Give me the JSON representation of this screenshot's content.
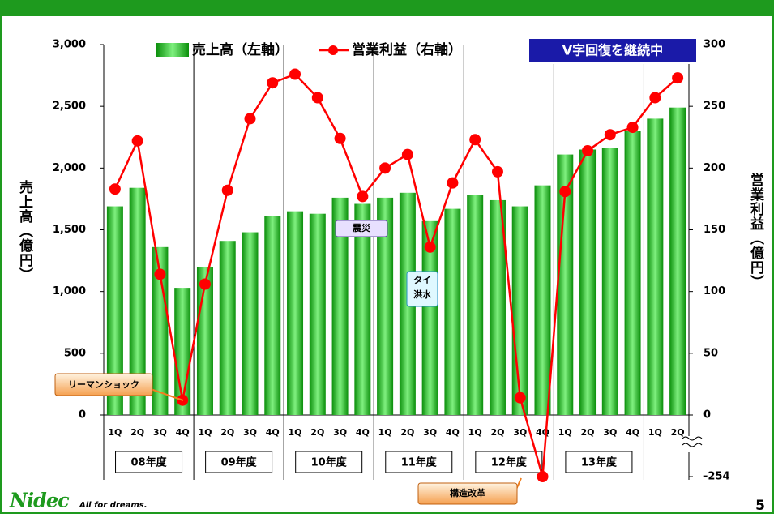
{
  "chart_data": {
    "type": "bar_line",
    "categories": [
      "1Q",
      "2Q",
      "3Q",
      "4Q",
      "1Q",
      "2Q",
      "3Q",
      "4Q",
      "1Q",
      "2Q",
      "3Q",
      "4Q",
      "1Q",
      "2Q",
      "3Q",
      "4Q",
      "1Q",
      "2Q",
      "3Q",
      "4Q",
      "1Q",
      "2Q",
      "3Q",
      "4Q",
      "1Q",
      "2Q"
    ],
    "groups": [
      "08年度",
      "09年度",
      "10年度",
      "11年度",
      "12年度",
      "13年度"
    ],
    "series": [
      {
        "name": "売上高（左軸）",
        "color": "#22bb22",
        "kind": "bar",
        "values": [
          1690,
          1840,
          1360,
          1030,
          1200,
          1410,
          1480,
          1610,
          1650,
          1630,
          1760,
          1710,
          1760,
          1800,
          1570,
          1670,
          1780,
          1740,
          1690,
          1860,
          2110,
          2150,
          2160,
          2300,
          2400,
          2490
        ]
      },
      {
        "name": "営業利益（右軸）",
        "color": "#ff0000",
        "kind": "line",
        "axis": "y2",
        "values": [
          183,
          222,
          114,
          12,
          106,
          182,
          240,
          269,
          276,
          257,
          224,
          177,
          200,
          211,
          136,
          188,
          223,
          197,
          14,
          -254,
          181,
          214,
          227,
          233,
          257,
          273
        ]
      }
    ],
    "ylabel": "売上高（億円）",
    "y2label": "営業利益（億円）",
    "ylim": [
      0,
      3000
    ],
    "yticks": [
      0,
      500,
      {
        "value": 1000,
        "label": "1,000"
      },
      {
        "value": 1500,
        "label": "1,500"
      },
      {
        "value": 2000,
        "label": "2,000"
      },
      {
        "value": 2500,
        "label": "2,500"
      },
      {
        "value": 3000,
        "label": "3,000"
      }
    ],
    "y2lim": [
      0,
      300
    ],
    "y2ticks": [
      -254,
      0,
      50,
      100,
      150,
      200,
      250,
      300
    ],
    "y2_break": true,
    "annotations": [
      "V字回復を継続中",
      "リーマンショック",
      "震災",
      "タイ洪水",
      "構造改革"
    ],
    "logo": "Nidec",
    "tagline": "All for dreams.",
    "page_number": "5"
  }
}
